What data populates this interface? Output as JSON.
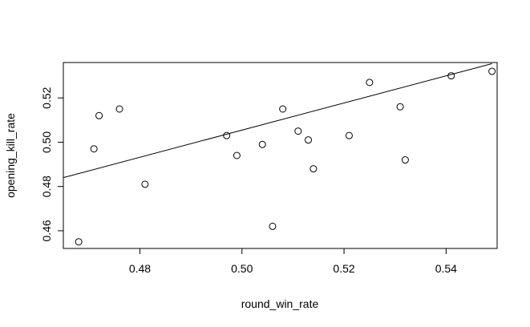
{
  "chart_data": {
    "type": "scatter",
    "title": "",
    "xlabel": "round_win_rate",
    "ylabel": "opening_kill_rate",
    "xlim": [
      0.465,
      0.55
    ],
    "ylim": [
      0.452,
      0.536
    ],
    "x_ticks": [
      0.48,
      0.5,
      0.52,
      0.54
    ],
    "x_tick_labels": [
      "0.48",
      "0.50",
      "0.52",
      "0.54"
    ],
    "y_ticks": [
      0.46,
      0.48,
      0.5,
      0.52
    ],
    "y_tick_labels": [
      "0.46",
      "0.48",
      "0.50",
      "0.52"
    ],
    "grid": false,
    "marker": "open-circle",
    "points": [
      {
        "x": 0.468,
        "y": 0.455
      },
      {
        "x": 0.471,
        "y": 0.497
      },
      {
        "x": 0.472,
        "y": 0.512
      },
      {
        "x": 0.476,
        "y": 0.515
      },
      {
        "x": 0.481,
        "y": 0.481
      },
      {
        "x": 0.497,
        "y": 0.503
      },
      {
        "x": 0.499,
        "y": 0.494
      },
      {
        "x": 0.504,
        "y": 0.499
      },
      {
        "x": 0.506,
        "y": 0.462
      },
      {
        "x": 0.508,
        "y": 0.515
      },
      {
        "x": 0.511,
        "y": 0.505
      },
      {
        "x": 0.513,
        "y": 0.501
      },
      {
        "x": 0.514,
        "y": 0.488
      },
      {
        "x": 0.521,
        "y": 0.503
      },
      {
        "x": 0.525,
        "y": 0.527
      },
      {
        "x": 0.531,
        "y": 0.516
      },
      {
        "x": 0.532,
        "y": 0.492
      },
      {
        "x": 0.541,
        "y": 0.53
      },
      {
        "x": 0.549,
        "y": 0.532
      }
    ],
    "trendline": {
      "type": "linear",
      "start": {
        "x": 0.465,
        "y": 0.484
      },
      "end": {
        "x": 0.549,
        "y": 0.5355
      }
    }
  }
}
